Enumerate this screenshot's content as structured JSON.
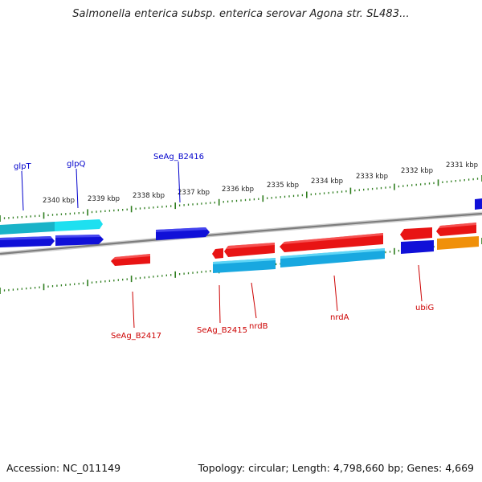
{
  "title": "Salmonella enterica subsp. enterica serovar Agona str. SL483...",
  "footer": {
    "accession": "Accession: NC_011149",
    "topology": "Topology: circular; Length: 4,798,660 bp; Genes: 4,669"
  },
  "colors": {
    "forward_gene": "#0000dd",
    "forward_cds": "#00c8e6",
    "reverse_gene": "#ee1111",
    "reverse_cds": "#00b4f0",
    "rna": "#ff9900",
    "scale_ticks": "#2e7d1e",
    "backbone": "#8a8a8a",
    "label_forward": "#0000cc",
    "label_reverse": "#cc0000"
  },
  "scale_labels": [
    "2331 kbp",
    "2332 kbp",
    "2333 kbp",
    "2334 kbp",
    "2335 kbp",
    "2336 kbp",
    "2337 kbp",
    "2338 kbp",
    "2339 kbp",
    "2340 kbp"
  ],
  "forward_labels": [
    "glpT",
    "glpQ",
    "SeAg_B2416"
  ],
  "reverse_labels": [
    "SeAg_B2417",
    "SeAg_B2415",
    "nrdB",
    "nrdA",
    "ubiG"
  ]
}
